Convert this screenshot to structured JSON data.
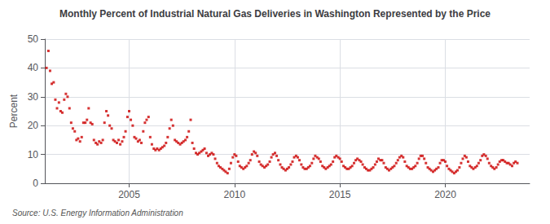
{
  "chart_data": {
    "type": "scatter",
    "title": "Monthly Percent of Industrial Natural Gas Deliveries in Washington Represented by the Price",
    "ylabel": "Percent",
    "source": "Source: U.S. Energy Information Administration",
    "color": "#cc0000",
    "marker": "square",
    "grid": true,
    "xlim": [
      2001.0,
      2024.0
    ],
    "xticks": [
      2005,
      2010,
      2015,
      2020
    ],
    "ylim": [
      0,
      50
    ],
    "yticks": [
      0,
      10,
      20,
      30,
      40,
      50
    ],
    "x": [
      2001.08,
      2001.17,
      2001.25,
      2001.33,
      2001.42,
      2001.5,
      2001.58,
      2001.67,
      2001.75,
      2001.83,
      2001.92,
      2002.0,
      2002.08,
      2002.17,
      2002.25,
      2002.33,
      2002.42,
      2002.5,
      2002.58,
      2002.67,
      2002.75,
      2002.83,
      2002.92,
      2003.0,
      2003.08,
      2003.17,
      2003.25,
      2003.33,
      2003.42,
      2003.5,
      2003.58,
      2003.67,
      2003.75,
      2003.83,
      2003.92,
      2004.0,
      2004.08,
      2004.17,
      2004.25,
      2004.33,
      2004.42,
      2004.5,
      2004.58,
      2004.67,
      2004.75,
      2004.83,
      2004.92,
      2005.0,
      2005.08,
      2005.17,
      2005.25,
      2005.33,
      2005.42,
      2005.5,
      2005.58,
      2005.67,
      2005.75,
      2005.83,
      2005.92,
      2006.0,
      2006.08,
      2006.17,
      2006.25,
      2006.33,
      2006.42,
      2006.5,
      2006.58,
      2006.67,
      2006.75,
      2006.83,
      2006.92,
      2007.0,
      2007.08,
      2007.17,
      2007.25,
      2007.33,
      2007.42,
      2007.5,
      2007.58,
      2007.67,
      2007.75,
      2007.83,
      2007.92,
      2008.0,
      2008.08,
      2008.17,
      2008.25,
      2008.33,
      2008.42,
      2008.5,
      2008.58,
      2008.67,
      2008.75,
      2008.83,
      2008.92,
      2009.0,
      2009.08,
      2009.17,
      2009.25,
      2009.33,
      2009.42,
      2009.5,
      2009.58,
      2009.67,
      2009.75,
      2009.83,
      2009.92,
      2010.0,
      2010.08,
      2010.17,
      2010.25,
      2010.33,
      2010.42,
      2010.5,
      2010.58,
      2010.67,
      2010.75,
      2010.83,
      2010.92,
      2011.0,
      2011.08,
      2011.17,
      2011.25,
      2011.33,
      2011.42,
      2011.5,
      2011.58,
      2011.67,
      2011.75,
      2011.83,
      2011.92,
      2012.0,
      2012.08,
      2012.17,
      2012.25,
      2012.33,
      2012.42,
      2012.5,
      2012.58,
      2012.67,
      2012.75,
      2012.83,
      2012.92,
      2013.0,
      2013.08,
      2013.17,
      2013.25,
      2013.33,
      2013.42,
      2013.5,
      2013.58,
      2013.67,
      2013.75,
      2013.83,
      2013.92,
      2014.0,
      2014.08,
      2014.17,
      2014.25,
      2014.33,
      2014.42,
      2014.5,
      2014.58,
      2014.67,
      2014.75,
      2014.83,
      2014.92,
      2015.0,
      2015.08,
      2015.17,
      2015.25,
      2015.33,
      2015.42,
      2015.5,
      2015.58,
      2015.67,
      2015.75,
      2015.83,
      2015.92,
      2016.0,
      2016.08,
      2016.17,
      2016.25,
      2016.33,
      2016.42,
      2016.5,
      2016.58,
      2016.67,
      2016.75,
      2016.83,
      2016.92,
      2017.0,
      2017.08,
      2017.17,
      2017.25,
      2017.33,
      2017.42,
      2017.5,
      2017.58,
      2017.67,
      2017.75,
      2017.83,
      2017.92,
      2018.0,
      2018.08,
      2018.17,
      2018.25,
      2018.33,
      2018.42,
      2018.5,
      2018.58,
      2018.67,
      2018.75,
      2018.83,
      2018.92,
      2019.0,
      2019.08,
      2019.17,
      2019.25,
      2019.33,
      2019.42,
      2019.5,
      2019.58,
      2019.67,
      2019.75,
      2019.83,
      2019.92,
      2020.0,
      2020.08,
      2020.17,
      2020.25,
      2020.33,
      2020.42,
      2020.5,
      2020.58,
      2020.67,
      2020.75,
      2020.83,
      2020.92,
      2021.0,
      2021.08,
      2021.17,
      2021.25,
      2021.33,
      2021.42,
      2021.5,
      2021.58,
      2021.67,
      2021.75,
      2021.83,
      2021.92,
      2022.0,
      2022.08,
      2022.17,
      2022.25,
      2022.33,
      2022.42,
      2022.5,
      2022.58,
      2022.67,
      2022.75,
      2022.83,
      2022.92,
      2023.0,
      2023.08,
      2023.17,
      2023.25,
      2023.33,
      2023.42
    ],
    "values": [
      40.0,
      45.9,
      39.0,
      34.5,
      35.0,
      29.0,
      26.0,
      28.0,
      25.0,
      24.5,
      29.0,
      31.0,
      30.0,
      26.0,
      21.0,
      19.0,
      18.0,
      15.0,
      15.5,
      14.5,
      16.0,
      21.0,
      21.0,
      22.0,
      26.0,
      21.0,
      20.5,
      15.0,
      14.0,
      13.5,
      14.5,
      14.0,
      15.0,
      21.0,
      25.0,
      23.5,
      20.0,
      19.0,
      15.0,
      14.5,
      14.0,
      15.0,
      13.5,
      14.5,
      16.0,
      18.0,
      23.0,
      25.0,
      22.0,
      20.0,
      16.0,
      15.5,
      14.5,
      15.0,
      14.0,
      18.0,
      21.0,
      22.0,
      23.0,
      16.0,
      13.5,
      12.0,
      11.5,
      12.0,
      11.5,
      12.0,
      12.5,
      13.0,
      14.0,
      16.0,
      19.0,
      22.0,
      20.0,
      15.0,
      14.5,
      14.0,
      13.5,
      14.0,
      14.5,
      15.0,
      16.0,
      18.0,
      22.0,
      14.0,
      12.0,
      10.5,
      10.0,
      10.5,
      11.0,
      11.5,
      12.0,
      10.5,
      9.5,
      10.0,
      10.5,
      10.0,
      8.5,
      7.0,
      6.0,
      5.5,
      5.0,
      4.5,
      4.0,
      3.5,
      5.0,
      7.0,
      9.0,
      10.0,
      9.5,
      7.5,
      6.0,
      5.5,
      5.0,
      5.5,
      6.0,
      7.0,
      8.0,
      10.0,
      11.0,
      10.5,
      9.5,
      7.5,
      6.5,
      6.0,
      5.5,
      6.0,
      6.5,
      7.5,
      9.0,
      10.0,
      10.5,
      9.5,
      8.0,
      6.5,
      5.5,
      5.0,
      4.5,
      5.0,
      5.5,
      6.5,
      7.5,
      9.0,
      9.5,
      9.0,
      8.0,
      6.5,
      5.5,
      5.0,
      5.0,
      5.5,
      6.0,
      7.0,
      8.5,
      9.5,
      9.0,
      8.5,
      7.5,
      6.0,
      5.5,
      5.0,
      5.5,
      6.0,
      6.5,
      7.5,
      9.0,
      9.5,
      9.0,
      8.5,
      7.5,
      6.0,
      5.5,
      5.0,
      5.0,
      5.5,
      6.0,
      7.0,
      8.0,
      8.5,
      8.0,
      7.5,
      6.5,
      5.5,
      5.0,
      4.5,
      4.5,
      5.0,
      5.5,
      6.5,
      7.5,
      8.5,
      8.0,
      8.0,
      7.0,
      5.5,
      5.0,
      4.5,
      5.0,
      5.5,
      6.0,
      7.0,
      8.0,
      9.0,
      9.5,
      9.0,
      7.5,
      6.0,
      5.5,
      5.0,
      5.0,
      5.5,
      6.0,
      7.0,
      8.5,
      9.5,
      9.5,
      8.5,
      7.0,
      5.5,
      5.0,
      4.5,
      4.0,
      4.5,
      5.0,
      5.5,
      7.0,
      8.0,
      8.0,
      7.5,
      6.0,
      5.0,
      4.5,
      4.0,
      3.5,
      4.0,
      4.5,
      5.5,
      7.0,
      8.5,
      9.5,
      9.0,
      7.5,
      6.0,
      5.5,
      5.0,
      5.5,
      6.0,
      7.0,
      8.0,
      9.5,
      10.0,
      9.5,
      8.5,
      7.0,
      6.0,
      5.5,
      5.0,
      5.5,
      6.5,
      7.5,
      8.0,
      8.0,
      7.5,
      7.0,
      7.0,
      6.5,
      6.0,
      7.0,
      7.5,
      7.0
    ]
  }
}
